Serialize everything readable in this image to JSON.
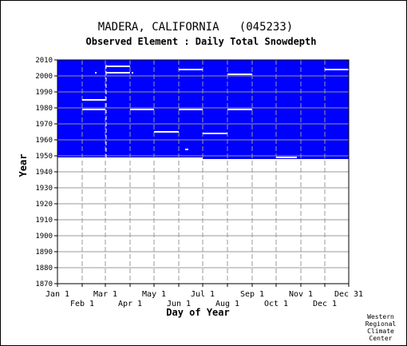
{
  "chart_data": {
    "type": "heatmap",
    "title": "MADERA, CALIFORNIA   (045233)",
    "subtitle": "Observed Element : Daily Total Snowdepth",
    "xlabel": "Day of Year",
    "ylabel": "Year",
    "xlim": [
      1,
      366
    ],
    "ylim": [
      1870,
      2010
    ],
    "x_ticks_upper": [
      {
        "label": "Jan 1",
        "day": 1
      },
      {
        "label": "Mar 1",
        "day": 61
      },
      {
        "label": "May 1",
        "day": 122
      },
      {
        "label": "Jul 1",
        "day": 183
      },
      {
        "label": "Sep 1",
        "day": 245
      },
      {
        "label": "Nov 1",
        "day": 306
      },
      {
        "label": "Dec 31",
        "day": 366
      }
    ],
    "x_ticks_lower": [
      {
        "label": "Feb 1",
        "day": 32
      },
      {
        "label": "Apr 1",
        "day": 92
      },
      {
        "label": "Jun 1",
        "day": 153
      },
      {
        "label": "Aug 1",
        "day": 214
      },
      {
        "label": "Oct 1",
        "day": 275
      },
      {
        "label": "Dec 1",
        "day": 336
      }
    ],
    "y_ticks": [
      1870,
      1880,
      1890,
      1900,
      1910,
      1920,
      1930,
      1940,
      1950,
      1960,
      1970,
      1980,
      1990,
      2000,
      2010
    ],
    "grid": true,
    "colors": {
      "missing": "#0000ff",
      "observed": "#ffffff",
      "grid": "#999999"
    },
    "record": {
      "start_year": 1948,
      "end_year": 2010,
      "partial_start_day": 183
    },
    "observed_segments": [
      {
        "year": 2006,
        "start_day": 61,
        "end_day": 92
      },
      {
        "year": 2004,
        "start_day": 153,
        "end_day": 183
      },
      {
        "year": 2004,
        "start_day": 336,
        "end_day": 366
      },
      {
        "year": 2002,
        "start_day": 61,
        "end_day": 92
      },
      {
        "year": 2002,
        "start_day": 48,
        "end_day": 50
      },
      {
        "year": 2002,
        "start_day": 94,
        "end_day": 96
      },
      {
        "year": 2001,
        "start_day": 214,
        "end_day": 245
      },
      {
        "year": 1985,
        "start_day": 32,
        "end_day": 61
      },
      {
        "year": 1979,
        "start_day": 32,
        "end_day": 61
      },
      {
        "year": 1979,
        "start_day": 92,
        "end_day": 122
      },
      {
        "year": 1979,
        "start_day": 153,
        "end_day": 183
      },
      {
        "year": 1979,
        "start_day": 214,
        "end_day": 245
      },
      {
        "year": 1965,
        "start_day": 122,
        "end_day": 153
      },
      {
        "year": 1964,
        "start_day": 183,
        "end_day": 214
      },
      {
        "year": 1954,
        "start_day": 161,
        "end_day": 165
      },
      {
        "year": 1949,
        "start_day": 275,
        "end_day": 301
      }
    ],
    "observed_vertical": [
      {
        "day": 62,
        "year_start": 1948,
        "year_end": 2007
      }
    ]
  },
  "credit": [
    "Western",
    "Regional",
    "Climate",
    "Center"
  ]
}
